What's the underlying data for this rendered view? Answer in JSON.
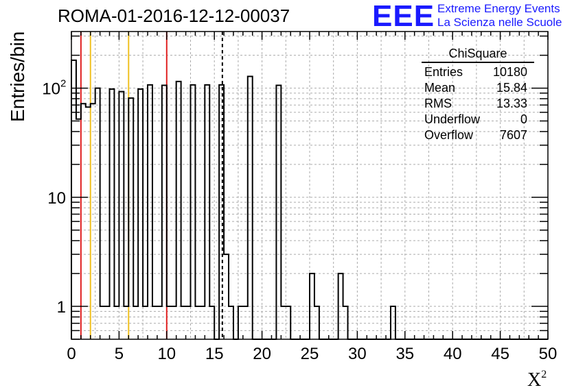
{
  "header": {
    "title": "ROMA-01-2016-12-12-00037",
    "logo_text": "EEE",
    "logo_line1": "Extreme Energy Events",
    "logo_line2": "La Scienza nelle Scuole",
    "logo_color": "#1a1aff"
  },
  "chart_data": {
    "type": "histogram",
    "title": "ROMA-01-2016-12-12-00037",
    "xlabel": "X",
    "xlabel_sup": "2",
    "ylabel": "Entries/bin",
    "xlim": [
      0,
      50
    ],
    "ylim": [
      0.5,
      330
    ],
    "yscale": "log",
    "grid": true,
    "bin_width": 0.5,
    "x_ticks": [
      "0",
      "5",
      "10",
      "15",
      "20",
      "25",
      "30",
      "35",
      "40",
      "45",
      "50"
    ],
    "y_ticks": [
      {
        "value": 1,
        "label": "1"
      },
      {
        "value": 10,
        "label": "10"
      },
      {
        "value": 100,
        "label": "10",
        "sup": "2"
      }
    ],
    "bin_counts": [
      180,
      52,
      72,
      67,
      72,
      100,
      1,
      1,
      98,
      1,
      93,
      1,
      81,
      1,
      98,
      1,
      107,
      1,
      1,
      106,
      1,
      1,
      115,
      1,
      1,
      107,
      1,
      1,
      107,
      1,
      0,
      107,
      3,
      1,
      0,
      1,
      1,
      128,
      0,
      0,
      0,
      0,
      0,
      106,
      1,
      1,
      0,
      0,
      0,
      0,
      2,
      1,
      0,
      0,
      0,
      0,
      2,
      1,
      0,
      0,
      0,
      0,
      0,
      0,
      0,
      0,
      0,
      1,
      0,
      0,
      0,
      0,
      0,
      0,
      0,
      0,
      0,
      0,
      0,
      0,
      0,
      0,
      0,
      0,
      0,
      0,
      0,
      0,
      0,
      0,
      0,
      0,
      0,
      0,
      0,
      0,
      0,
      0,
      0,
      0
    ],
    "bin_counts_note_excluded": true,
    "reference_lines": [
      {
        "x": 1,
        "color": "#e02020"
      },
      {
        "x": 2,
        "color": "#f0c020"
      },
      {
        "x": 6,
        "color": "#f0c020"
      },
      {
        "x": 10,
        "color": "#e02020"
      },
      {
        "x": 15.84,
        "color": "#000000",
        "dashed": true
      }
    ],
    "stats_box": {
      "title": "ChiSquare",
      "rows": [
        {
          "label": "Entries",
          "value": "10180"
        },
        {
          "label": "Mean",
          "value": "15.84"
        },
        {
          "label": "RMS",
          "value": "13.33"
        },
        {
          "label": "Underflow",
          "value": "0"
        },
        {
          "label": "Overflow",
          "value": "7607"
        }
      ]
    }
  }
}
